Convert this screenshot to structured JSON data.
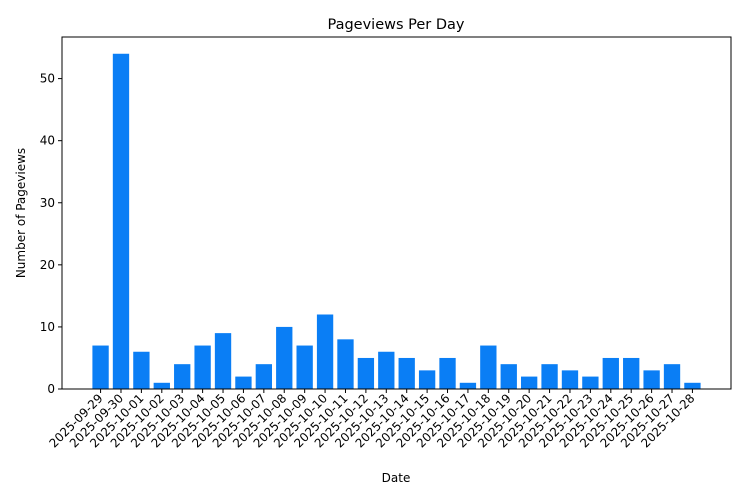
{
  "chart_data": {
    "type": "bar",
    "title": "Pageviews Per Day",
    "x_label": "Date",
    "y_label": "Number of Pageviews",
    "categories": [
      "2025-09-29",
      "2025-09-30",
      "2025-10-01",
      "2025-10-02",
      "2025-10-03",
      "2025-10-04",
      "2025-10-05",
      "2025-10-06",
      "2025-10-07",
      "2025-10-08",
      "2025-10-09",
      "2025-10-10",
      "2025-10-11",
      "2025-10-12",
      "2025-10-13",
      "2025-10-14",
      "2025-10-15",
      "2025-10-16",
      "2025-10-17",
      "2025-10-18",
      "2025-10-19",
      "2025-10-20",
      "2025-10-21",
      "2025-10-22",
      "2025-10-23",
      "2025-10-24",
      "2025-10-25",
      "2025-10-26",
      "2025-10-27",
      "2025-10-28"
    ],
    "values": [
      7,
      54,
      6,
      1,
      4,
      7,
      9,
      2,
      4,
      10,
      7,
      12,
      8,
      5,
      6,
      5,
      3,
      5,
      1,
      7,
      4,
      2,
      4,
      3,
      2,
      5,
      5,
      3,
      4,
      1
    ],
    "color": "#0a7ef5",
    "ylim": [
      0,
      56.7
    ],
    "yticks": [
      0,
      10,
      20,
      30,
      40,
      50
    ],
    "grid": false
  }
}
